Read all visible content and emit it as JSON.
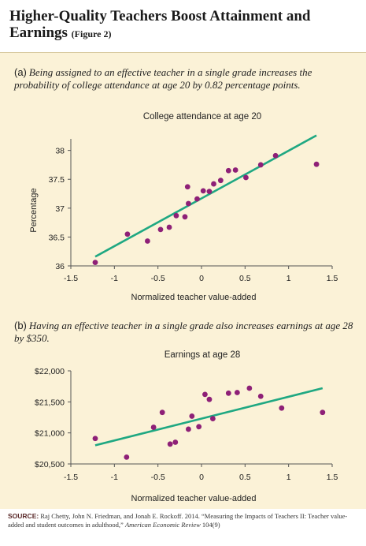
{
  "header": {
    "title": "Higher-Quality Teachers Boost Attainment and Earnings",
    "figure_label": "(Figure 2)"
  },
  "panel_a": {
    "tag": "(a)",
    "caption": "Being assigned to an effective teacher in a single grade increases the probability of college attendance at age 20 by 0.82 percentage points."
  },
  "panel_b": {
    "tag": "(b)",
    "caption": "Having an effective teacher in a single grade also increases earnings at age 28 by $350."
  },
  "source": {
    "label": "SOURCE:",
    "text": "Raj Chetty, John N. Friedman, and Jonah E. Rockoff. 2014. “Measuring the Impacts of Teachers II: Teacher value-added and student outcomes in adulthood,”",
    "journal": "American Economic Review",
    "volume": "104(9)"
  },
  "colors": {
    "background": "#fbf2d7",
    "point": "#8e2077",
    "fit_line": "#1fa882"
  },
  "chart_data": [
    {
      "type": "scatter",
      "title": "College attendance at age 20",
      "xlabel": "Normalized teacher value-added",
      "ylabel": "Percentage",
      "xlim": [
        -1.5,
        1.5
      ],
      "ylim": [
        36,
        38.2
      ],
      "xticks": [
        -1.5,
        -1,
        -0.5,
        0,
        0.5,
        1,
        1.5
      ],
      "xtick_labels": [
        "-1.5",
        "-1",
        "-0.5",
        "0",
        "0.5",
        "1",
        "1.5"
      ],
      "yticks": [
        36,
        36.5,
        37,
        37.5,
        38
      ],
      "ytick_labels": [
        "36",
        "36.5",
        "37",
        "37.5",
        "38"
      ],
      "grid": false,
      "points": {
        "x": [
          -1.22,
          -0.85,
          -0.62,
          -0.47,
          -0.37,
          -0.29,
          -0.19,
          -0.16,
          -0.15,
          -0.05,
          0.02,
          0.09,
          0.14,
          0.22,
          0.31,
          0.39,
          0.51,
          0.68,
          0.85,
          1.32
        ],
        "y": [
          36.06,
          36.55,
          36.43,
          36.63,
          36.67,
          36.87,
          36.85,
          37.37,
          37.08,
          37.16,
          37.3,
          37.29,
          37.42,
          37.48,
          37.65,
          37.66,
          37.53,
          37.75,
          37.91,
          37.76
        ]
      },
      "fit_line": {
        "x": [
          -1.22,
          1.32
        ],
        "y": [
          36.16,
          38.26
        ]
      }
    },
    {
      "type": "scatter",
      "title": "Earnings at age 28",
      "xlabel": "Normalized teacher value-added",
      "ylabel": "",
      "xlim": [
        -1.5,
        1.5
      ],
      "ylim": [
        20500,
        22000
      ],
      "xticks": [
        -1.5,
        -1,
        -0.5,
        0,
        0.5,
        1,
        1.5
      ],
      "xtick_labels": [
        "-1.5",
        "-1",
        "-0.5",
        "0",
        "0.5",
        "1",
        "1.5"
      ],
      "yticks": [
        20500,
        21000,
        21500,
        22000
      ],
      "ytick_labels": [
        "$20,500",
        "$21,000",
        "$21,500",
        "$22,000"
      ],
      "grid": false,
      "points": {
        "x": [
          -1.22,
          -0.86,
          -0.55,
          -0.45,
          -0.36,
          -0.3,
          -0.15,
          -0.11,
          -0.03,
          0.04,
          0.09,
          0.13,
          0.31,
          0.41,
          0.55,
          0.68,
          0.92,
          1.39
        ],
        "y": [
          20910,
          20610,
          21090,
          21330,
          20820,
          20850,
          21060,
          21270,
          21100,
          21620,
          21540,
          21230,
          21640,
          21650,
          21720,
          21590,
          21400,
          21330
        ]
      },
      "fit_line": {
        "x": [
          -1.22,
          1.39
        ],
        "y": [
          20800,
          21720
        ]
      }
    }
  ]
}
